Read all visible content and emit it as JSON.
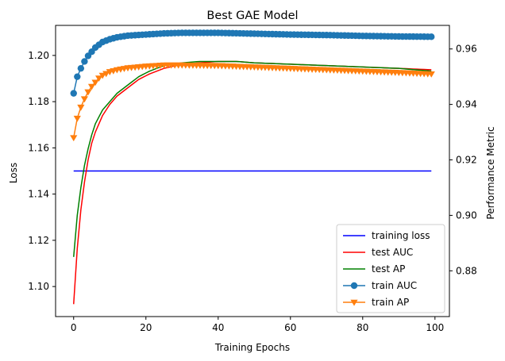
{
  "chart_data": {
    "type": "line",
    "title": "Best GAE Model",
    "xlabel": "Training Epochs",
    "ylabel_left": "Loss",
    "ylabel_right": "Performance Metric",
    "xlim": [
      -5,
      104
    ],
    "ylim_left": [
      1.087,
      1.213
    ],
    "ylim_right": [
      0.8635,
      0.9685
    ],
    "xticks": [
      0,
      20,
      40,
      60,
      80,
      100
    ],
    "yticks_left": [
      1.1,
      1.12,
      1.14,
      1.16,
      1.18,
      1.2
    ],
    "yticks_left_labels": [
      "1.10",
      "1.12",
      "1.14",
      "1.16",
      "1.18",
      "1.20"
    ],
    "yticks_right": [
      0.88,
      0.9,
      0.92,
      0.94,
      0.96
    ],
    "yticks_right_labels": [
      "0.88",
      "0.90",
      "0.92",
      "0.94",
      "0.96"
    ],
    "grid": false,
    "legend_position": "lower-right",
    "x_range": [
      0,
      99
    ],
    "series": [
      {
        "name": "training loss",
        "axis": "left",
        "color": "#0000ff",
        "marker": "none",
        "anchors": [
          [
            0,
            1.15
          ],
          [
            99,
            1.15
          ]
        ]
      },
      {
        "name": "test AUC",
        "axis": "right",
        "color": "#ff0000",
        "marker": "none",
        "anchors": [
          [
            0,
            0.868
          ],
          [
            1,
            0.888
          ],
          [
            2,
            0.902
          ],
          [
            3,
            0.912
          ],
          [
            4,
            0.92
          ],
          [
            5,
            0.926
          ],
          [
            6,
            0.93
          ],
          [
            8,
            0.936
          ],
          [
            10,
            0.94
          ],
          [
            12,
            0.943
          ],
          [
            15,
            0.946
          ],
          [
            18,
            0.949
          ],
          [
            21,
            0.951
          ],
          [
            25,
            0.953
          ],
          [
            30,
            0.9545
          ],
          [
            35,
            0.955
          ],
          [
            40,
            0.9555
          ],
          [
            45,
            0.9555
          ],
          [
            50,
            0.955
          ],
          [
            60,
            0.9545
          ],
          [
            70,
            0.954
          ],
          [
            80,
            0.9535
          ],
          [
            90,
            0.953
          ],
          [
            99,
            0.9525
          ]
        ]
      },
      {
        "name": "test AP",
        "axis": "right",
        "color": "#008000",
        "marker": "none",
        "anchors": [
          [
            0,
            0.885
          ],
          [
            1,
            0.9
          ],
          [
            2,
            0.91
          ],
          [
            3,
            0.918
          ],
          [
            4,
            0.924
          ],
          [
            5,
            0.929
          ],
          [
            6,
            0.933
          ],
          [
            8,
            0.938
          ],
          [
            10,
            0.941
          ],
          [
            12,
            0.944
          ],
          [
            15,
            0.947
          ],
          [
            18,
            0.95
          ],
          [
            21,
            0.952
          ],
          [
            25,
            0.954
          ],
          [
            30,
            0.955
          ],
          [
            35,
            0.9555
          ],
          [
            40,
            0.9555
          ],
          [
            45,
            0.9555
          ],
          [
            50,
            0.955
          ],
          [
            60,
            0.9545
          ],
          [
            70,
            0.954
          ],
          [
            80,
            0.9535
          ],
          [
            90,
            0.953
          ],
          [
            99,
            0.952
          ]
        ]
      },
      {
        "name": "train AUC",
        "axis": "right",
        "color": "#1f77b4",
        "marker": "circle",
        "anchors": [
          [
            0,
            0.944
          ],
          [
            1,
            0.95
          ],
          [
            2,
            0.953
          ],
          [
            3,
            0.9555
          ],
          [
            4,
            0.9575
          ],
          [
            5,
            0.959
          ],
          [
            6,
            0.9605
          ],
          [
            7,
            0.9615
          ],
          [
            8,
            0.9625
          ],
          [
            10,
            0.9635
          ],
          [
            12,
            0.9642
          ],
          [
            15,
            0.9648
          ],
          [
            20,
            0.9652
          ],
          [
            25,
            0.9656
          ],
          [
            30,
            0.9658
          ],
          [
            40,
            0.9658
          ],
          [
            50,
            0.9655
          ],
          [
            60,
            0.9652
          ],
          [
            70,
            0.965
          ],
          [
            80,
            0.9647
          ],
          [
            90,
            0.9645
          ],
          [
            99,
            0.9644
          ]
        ]
      },
      {
        "name": "train AP",
        "axis": "right",
        "color": "#ff7f0e",
        "marker": "triangle-down",
        "anchors": [
          [
            0,
            0.928
          ],
          [
            1,
            0.935
          ],
          [
            2,
            0.939
          ],
          [
            3,
            0.942
          ],
          [
            4,
            0.9445
          ],
          [
            5,
            0.9465
          ],
          [
            6,
            0.948
          ],
          [
            7,
            0.9495
          ],
          [
            8,
            0.9505
          ],
          [
            10,
            0.9518
          ],
          [
            12,
            0.9525
          ],
          [
            15,
            0.9532
          ],
          [
            20,
            0.9538
          ],
          [
            25,
            0.9542
          ],
          [
            30,
            0.9542
          ],
          [
            40,
            0.954
          ],
          [
            50,
            0.9535
          ],
          [
            60,
            0.953
          ],
          [
            70,
            0.9525
          ],
          [
            80,
            0.952
          ],
          [
            90,
            0.9515
          ],
          [
            99,
            0.951
          ]
        ]
      }
    ]
  }
}
